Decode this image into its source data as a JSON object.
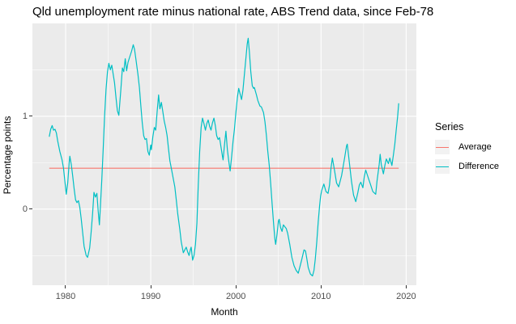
{
  "chart_data": {
    "type": "line",
    "title": "Qld unemployment rate minus national rate, ABS Trend data, since Feb-78",
    "xlabel": "Month",
    "ylabel": "Percentage points",
    "x_range": [
      1976.1,
      2021.2
    ],
    "y_range": [
      -0.82,
      2.0
    ],
    "x_ticks": [
      1980,
      1990,
      2000,
      2010,
      2020
    ],
    "x_minor_gridlines": [
      1985,
      1995,
      2005,
      2015
    ],
    "y_ticks": [
      0,
      1
    ],
    "y_minor_gridlines": [
      -0.5,
      0.5,
      1.5
    ],
    "grid": true,
    "panel_background": "#EBEBEB",
    "gridline_color": "#FFFFFF",
    "tick_label_color": "#4D4D4D",
    "legend": {
      "title": "Series",
      "position": "right",
      "items": [
        {
          "label": "Average",
          "color": "#F8766D"
        },
        {
          "label": "Difference",
          "color": "#00BFC4"
        }
      ]
    },
    "series": [
      {
        "name": "Average",
        "color": "#F8766D",
        "type": "hline",
        "value": 0.44,
        "x_start": 1978.08,
        "x_end": 2019.13
      },
      {
        "name": "Difference",
        "color": "#00BFC4",
        "type": "path",
        "points": [
          [
            1978.08,
            0.78
          ],
          [
            1978.25,
            0.86
          ],
          [
            1978.42,
            0.9
          ],
          [
            1978.58,
            0.85
          ],
          [
            1978.75,
            0.86
          ],
          [
            1978.92,
            0.82
          ],
          [
            1979.08,
            0.73
          ],
          [
            1979.33,
            0.62
          ],
          [
            1979.58,
            0.53
          ],
          [
            1979.75,
            0.44
          ],
          [
            1979.92,
            0.3
          ],
          [
            1980.08,
            0.16
          ],
          [
            1980.25,
            0.28
          ],
          [
            1980.42,
            0.5
          ],
          [
            1980.5,
            0.57
          ],
          [
            1980.67,
            0.48
          ],
          [
            1980.83,
            0.36
          ],
          [
            1981.0,
            0.22
          ],
          [
            1981.17,
            0.1
          ],
          [
            1981.33,
            0.07
          ],
          [
            1981.5,
            0.09
          ],
          [
            1981.67,
            0.02
          ],
          [
            1981.83,
            -0.1
          ],
          [
            1982.0,
            -0.25
          ],
          [
            1982.17,
            -0.4
          ],
          [
            1982.42,
            -0.5
          ],
          [
            1982.58,
            -0.52
          ],
          [
            1982.83,
            -0.42
          ],
          [
            1983.0,
            -0.25
          ],
          [
            1983.17,
            -0.05
          ],
          [
            1983.33,
            0.18
          ],
          [
            1983.5,
            0.13
          ],
          [
            1983.67,
            0.17
          ],
          [
            1983.83,
            -0.02
          ],
          [
            1983.97,
            -0.17
          ],
          [
            1984.08,
            0.02
          ],
          [
            1984.25,
            0.32
          ],
          [
            1984.42,
            0.65
          ],
          [
            1984.58,
            1.0
          ],
          [
            1984.75,
            1.29
          ],
          [
            1984.92,
            1.48
          ],
          [
            1985.08,
            1.57
          ],
          [
            1985.25,
            1.5
          ],
          [
            1985.42,
            1.55
          ],
          [
            1985.58,
            1.46
          ],
          [
            1985.75,
            1.36
          ],
          [
            1985.92,
            1.2
          ],
          [
            1986.08,
            1.06
          ],
          [
            1986.25,
            1.01
          ],
          [
            1986.5,
            1.3
          ],
          [
            1986.67,
            1.52
          ],
          [
            1986.83,
            1.48
          ],
          [
            1987.0,
            1.62
          ],
          [
            1987.17,
            1.49
          ],
          [
            1987.33,
            1.58
          ],
          [
            1987.5,
            1.63
          ],
          [
            1987.75,
            1.7
          ],
          [
            1987.95,
            1.77
          ],
          [
            1988.1,
            1.72
          ],
          [
            1988.25,
            1.62
          ],
          [
            1988.5,
            1.45
          ],
          [
            1988.67,
            1.31
          ],
          [
            1988.83,
            1.12
          ],
          [
            1989.0,
            0.93
          ],
          [
            1989.17,
            0.79
          ],
          [
            1989.33,
            0.75
          ],
          [
            1989.5,
            0.76
          ],
          [
            1989.67,
            0.62
          ],
          [
            1989.83,
            0.58
          ],
          [
            1990.0,
            0.69
          ],
          [
            1990.08,
            0.64
          ],
          [
            1990.25,
            0.78
          ],
          [
            1990.42,
            0.88
          ],
          [
            1990.58,
            0.85
          ],
          [
            1990.75,
            1.05
          ],
          [
            1990.92,
            1.23
          ],
          [
            1991.08,
            1.08
          ],
          [
            1991.25,
            1.15
          ],
          [
            1991.42,
            1.05
          ],
          [
            1991.58,
            0.95
          ],
          [
            1991.75,
            0.88
          ],
          [
            1991.92,
            0.79
          ],
          [
            1992.08,
            0.66
          ],
          [
            1992.25,
            0.52
          ],
          [
            1992.42,
            0.44
          ],
          [
            1992.58,
            0.36
          ],
          [
            1992.83,
            0.24
          ],
          [
            1993.0,
            0.1
          ],
          [
            1993.17,
            -0.05
          ],
          [
            1993.42,
            -0.22
          ],
          [
            1993.58,
            -0.35
          ],
          [
            1993.83,
            -0.47
          ],
          [
            1994.0,
            -0.44
          ],
          [
            1994.17,
            -0.41
          ],
          [
            1994.33,
            -0.46
          ],
          [
            1994.5,
            -0.5
          ],
          [
            1994.67,
            -0.43
          ],
          [
            1994.75,
            -0.41
          ],
          [
            1994.92,
            -0.55
          ],
          [
            1995.08,
            -0.5
          ],
          [
            1995.25,
            -0.38
          ],
          [
            1995.42,
            -0.15
          ],
          [
            1995.58,
            0.25
          ],
          [
            1995.75,
            0.62
          ],
          [
            1995.92,
            0.88
          ],
          [
            1996.08,
            0.98
          ],
          [
            1996.25,
            0.92
          ],
          [
            1996.42,
            0.85
          ],
          [
            1996.58,
            0.92
          ],
          [
            1996.75,
            0.96
          ],
          [
            1996.92,
            0.89
          ],
          [
            1997.08,
            0.85
          ],
          [
            1997.25,
            0.93
          ],
          [
            1997.42,
            0.98
          ],
          [
            1997.58,
            0.9
          ],
          [
            1997.75,
            0.79
          ],
          [
            1997.92,
            0.75
          ],
          [
            1998.08,
            0.77
          ],
          [
            1998.25,
            0.67
          ],
          [
            1998.42,
            0.57
          ],
          [
            1998.5,
            0.53
          ],
          [
            1998.67,
            0.7
          ],
          [
            1998.83,
            0.84
          ],
          [
            1999.0,
            0.64
          ],
          [
            1999.17,
            0.51
          ],
          [
            1999.33,
            0.41
          ],
          [
            1999.5,
            0.56
          ],
          [
            1999.67,
            0.73
          ],
          [
            1999.83,
            0.86
          ],
          [
            2000.0,
            1.04
          ],
          [
            2000.17,
            1.2
          ],
          [
            2000.33,
            1.3
          ],
          [
            2000.5,
            1.24
          ],
          [
            2000.67,
            1.18
          ],
          [
            2000.83,
            1.28
          ],
          [
            2001.0,
            1.45
          ],
          [
            2001.17,
            1.62
          ],
          [
            2001.33,
            1.78
          ],
          [
            2001.45,
            1.84
          ],
          [
            2001.58,
            1.7
          ],
          [
            2001.75,
            1.48
          ],
          [
            2001.92,
            1.33
          ],
          [
            2002.08,
            1.3
          ],
          [
            2002.17,
            1.31
          ],
          [
            2002.42,
            1.23
          ],
          [
            2002.58,
            1.17
          ],
          [
            2002.83,
            1.11
          ],
          [
            2003.0,
            1.1
          ],
          [
            2003.25,
            1.04
          ],
          [
            2003.42,
            0.94
          ],
          [
            2003.58,
            0.8
          ],
          [
            2003.75,
            0.62
          ],
          [
            2003.92,
            0.47
          ],
          [
            2004.08,
            0.28
          ],
          [
            2004.25,
            0.06
          ],
          [
            2004.42,
            -0.14
          ],
          [
            2004.58,
            -0.32
          ],
          [
            2004.67,
            -0.38
          ],
          [
            2004.83,
            -0.27
          ],
          [
            2005.0,
            -0.13
          ],
          [
            2005.08,
            -0.11
          ],
          [
            2005.25,
            -0.2
          ],
          [
            2005.42,
            -0.24
          ],
          [
            2005.58,
            -0.17
          ],
          [
            2005.75,
            -0.19
          ],
          [
            2005.92,
            -0.21
          ],
          [
            2006.08,
            -0.26
          ],
          [
            2006.33,
            -0.38
          ],
          [
            2006.58,
            -0.52
          ],
          [
            2006.83,
            -0.61
          ],
          [
            2007.08,
            -0.66
          ],
          [
            2007.33,
            -0.69
          ],
          [
            2007.5,
            -0.63
          ],
          [
            2007.75,
            -0.54
          ],
          [
            2008.0,
            -0.44
          ],
          [
            2008.17,
            -0.45
          ],
          [
            2008.33,
            -0.53
          ],
          [
            2008.5,
            -0.63
          ],
          [
            2008.75,
            -0.7
          ],
          [
            2009.0,
            -0.72
          ],
          [
            2009.17,
            -0.66
          ],
          [
            2009.33,
            -0.54
          ],
          [
            2009.5,
            -0.36
          ],
          [
            2009.67,
            -0.14
          ],
          [
            2009.83,
            0.03
          ],
          [
            2009.95,
            0.14
          ],
          [
            2010.08,
            0.2
          ],
          [
            2010.33,
            0.27
          ],
          [
            2010.58,
            0.19
          ],
          [
            2010.83,
            0.17
          ],
          [
            2011.0,
            0.26
          ],
          [
            2011.17,
            0.44
          ],
          [
            2011.33,
            0.55
          ],
          [
            2011.58,
            0.42
          ],
          [
            2011.83,
            0.28
          ],
          [
            2012.08,
            0.24
          ],
          [
            2012.42,
            0.36
          ],
          [
            2012.75,
            0.54
          ],
          [
            2013.0,
            0.68
          ],
          [
            2013.08,
            0.7
          ],
          [
            2013.33,
            0.5
          ],
          [
            2013.58,
            0.3
          ],
          [
            2013.83,
            0.15
          ],
          [
            2014.08,
            0.08
          ],
          [
            2014.33,
            0.18
          ],
          [
            2014.5,
            0.26
          ],
          [
            2014.67,
            0.29
          ],
          [
            2014.92,
            0.23
          ],
          [
            2015.08,
            0.35
          ],
          [
            2015.25,
            0.42
          ],
          [
            2015.58,
            0.33
          ],
          [
            2015.83,
            0.26
          ],
          [
            2016.08,
            0.19
          ],
          [
            2016.42,
            0.16
          ],
          [
            2016.58,
            0.3
          ],
          [
            2016.83,
            0.48
          ],
          [
            2016.95,
            0.59
          ],
          [
            2017.08,
            0.48
          ],
          [
            2017.33,
            0.38
          ],
          [
            2017.5,
            0.47
          ],
          [
            2017.67,
            0.54
          ],
          [
            2017.92,
            0.49
          ],
          [
            2018.08,
            0.55
          ],
          [
            2018.33,
            0.47
          ],
          [
            2018.5,
            0.58
          ],
          [
            2018.67,
            0.7
          ],
          [
            2018.83,
            0.85
          ],
          [
            2019.0,
            1.0
          ],
          [
            2019.13,
            1.14
          ]
        ]
      }
    ]
  }
}
